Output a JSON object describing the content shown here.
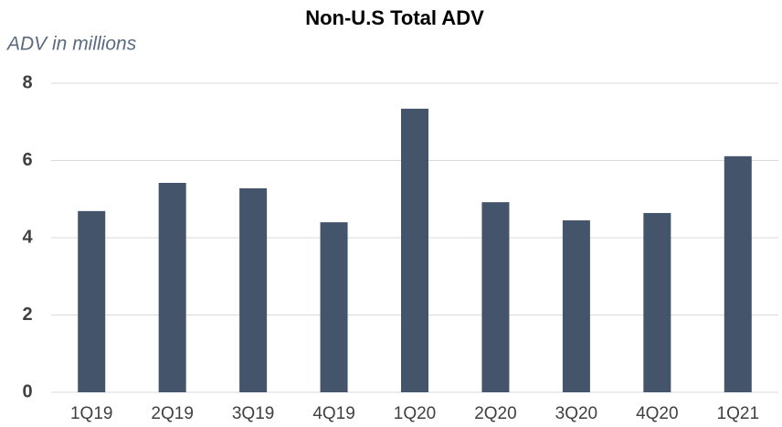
{
  "chart_data": {
    "type": "bar",
    "title": "Non-U.S Total ADV",
    "subtitle": "ADV in millions",
    "categories": [
      "1Q19",
      "2Q19",
      "3Q19",
      "4Q19",
      "1Q20",
      "2Q20",
      "3Q20",
      "4Q20",
      "1Q21"
    ],
    "values": [
      4.69,
      5.42,
      5.28,
      4.4,
      7.34,
      4.92,
      4.45,
      4.64,
      6.11
    ],
    "color": "#44546a",
    "ylim": [
      0,
      8
    ],
    "yticks": [
      0,
      2,
      4,
      6,
      8
    ],
    "grid": true
  }
}
